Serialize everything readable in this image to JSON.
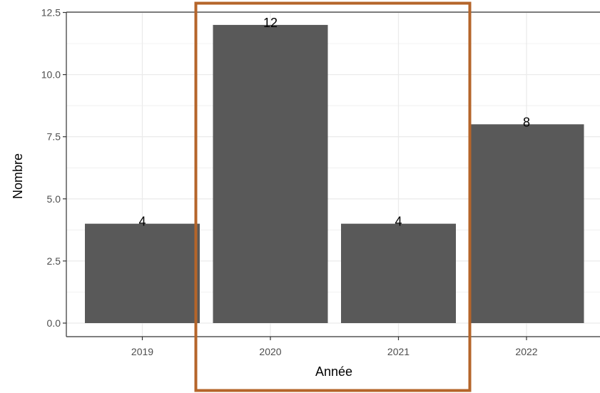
{
  "chart_data": {
    "type": "bar",
    "categories": [
      "2019",
      "2020",
      "2021",
      "2022"
    ],
    "values": [
      4,
      12,
      4,
      8
    ],
    "data_labels": [
      "4",
      "12",
      "4",
      "8"
    ],
    "title": "",
    "xlabel": "Année",
    "ylabel": "Nombre",
    "ylim": [
      0,
      12.5
    ],
    "yticks": [
      0.0,
      2.5,
      5.0,
      7.5,
      10.0,
      12.5
    ],
    "ytick_labels": [
      "0.0",
      "2.5",
      "5.0",
      "7.5",
      "10.0",
      "12.5"
    ],
    "grid": true,
    "legend": "none",
    "highlight": {
      "categories": [
        "2020",
        "2021"
      ],
      "color": "#b5652a"
    },
    "colors": {
      "bar": "#595959",
      "grid": "#ebebeb",
      "panel_border": "#333333",
      "background": "#ffffff"
    }
  }
}
